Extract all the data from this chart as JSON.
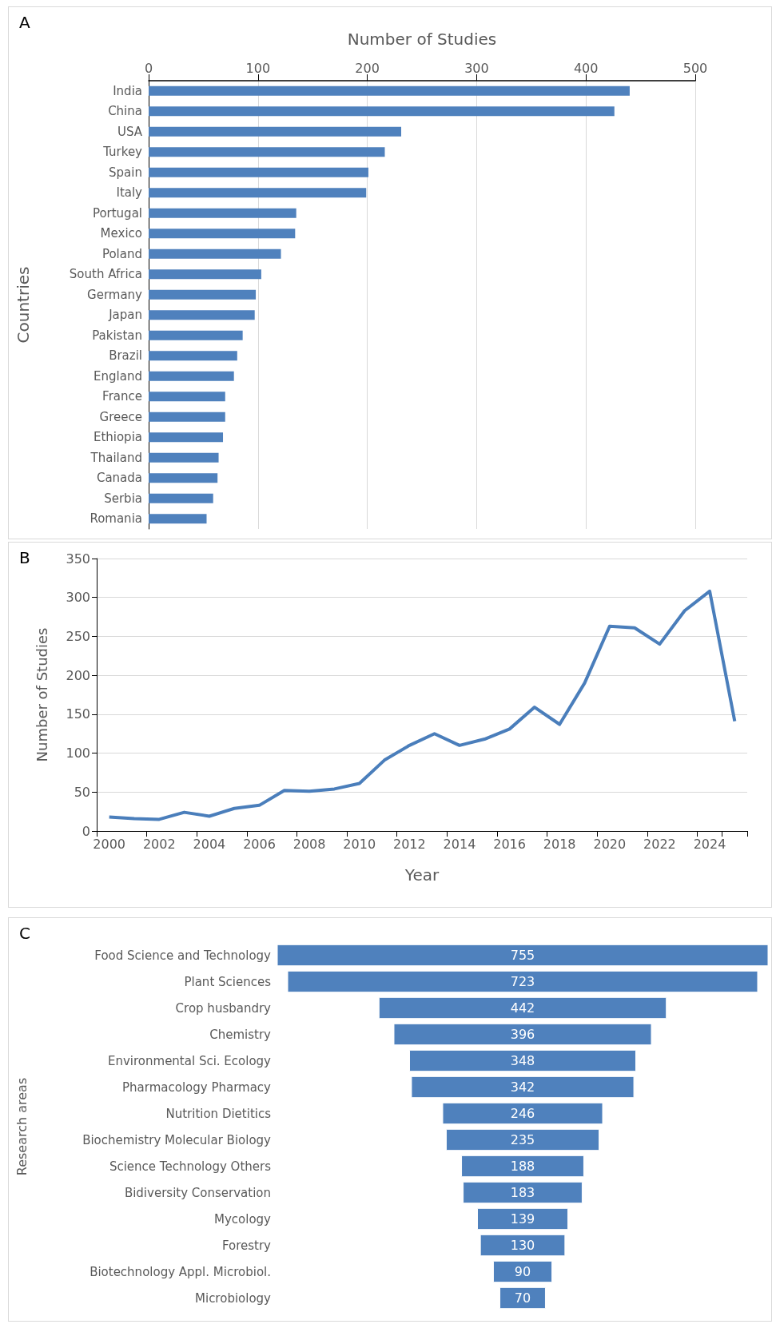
{
  "chart_data": [
    {
      "type": "bar",
      "title": "A",
      "orientation": "horizontal",
      "xlabel": "Number of Studies",
      "ylabel": "Countries",
      "grid": "x",
      "color": "#4f81bd",
      "categories": [
        "India",
        "China",
        "USA",
        "Turkey",
        "Spain",
        "Italy",
        "Portugal",
        "Mexico",
        "Poland",
        "South Africa",
        "Germany",
        "Japan",
        "Pakistan",
        "Brazil",
        "England",
        "France",
        "Greece",
        "Ethiopia",
        "Thailand",
        "Canada",
        "Serbia",
        "Romania"
      ],
      "values": [
        440,
        426,
        231,
        216,
        201,
        199,
        135,
        134,
        121,
        103,
        98,
        97,
        86,
        81,
        78,
        70,
        70,
        68,
        64,
        63,
        59,
        53
      ],
      "xlim": [
        0,
        500
      ],
      "xticks": [
        0,
        100,
        200,
        300,
        400,
        500
      ]
    },
    {
      "type": "line",
      "title": "B",
      "xlabel": "Year",
      "ylabel": "Number of Studies",
      "grid": "y",
      "color": "#4a7ebb",
      "categories": [
        "2000",
        null,
        "2002",
        null,
        "2004",
        null,
        "2006",
        null,
        "2008",
        null,
        "2010",
        null,
        "2012",
        null,
        "2014",
        null,
        "2016",
        null,
        "2018",
        null,
        "2020",
        null,
        "2022",
        null,
        "2024",
        null
      ],
      "values": [
        18,
        16,
        15,
        24,
        19,
        29,
        33,
        52,
        51,
        54,
        61,
        91,
        110,
        125,
        110,
        118,
        131,
        159,
        137,
        190,
        263,
        261,
        240,
        283,
        308,
        141
      ],
      "ylim": [
        0,
        350
      ],
      "yticks": [
        0,
        50,
        100,
        150,
        200,
        250,
        300,
        350
      ]
    },
    {
      "type": "other",
      "title": "C",
      "ylabel": "Research areas",
      "color": "#4f81bd",
      "data_labels": true,
      "categories": [
        "Food Science and Technology",
        "Plant Sciences",
        "Crop husbandry",
        "Chemistry",
        "Environmental Sci. Ecology",
        "Pharmacology Pharmacy",
        "Nutrition Dietitics",
        "Biochemistry Molecular Biology",
        "Science Technology Others",
        "Bidiversity Conservation",
        "Mycology",
        "Forestry",
        "Biotechnology Appl. Microbiol.",
        "Microbiology"
      ],
      "values": [
        755,
        723,
        442,
        396,
        348,
        342,
        246,
        235,
        188,
        183,
        139,
        130,
        90,
        70
      ]
    }
  ]
}
